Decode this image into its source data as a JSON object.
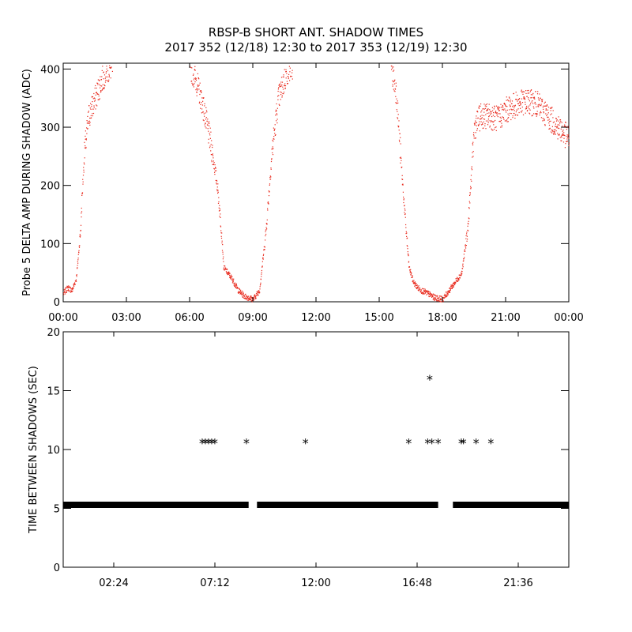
{
  "title": "RBSP-B SHORT ANT. SHADOW TIMES",
  "subtitle": "2017 352 (12/18) 12:30 to 2017 353 (12/19) 12:30",
  "colors": {
    "amp_points": "#e8291c",
    "shadow_points": "#000000",
    "axes": "#000000"
  },
  "chart_data": [
    {
      "type": "scatter",
      "ylabel": "Probe 5 DELTA AMP DURING SHADOW (ADC)",
      "xlabel": "",
      "xlim": [
        0,
        24
      ],
      "ylim": [
        0,
        400
      ],
      "xtick_labels": [
        "00:00",
        "03:00",
        "06:00",
        "09:00",
        "12:00",
        "15:00",
        "18:00",
        "21:00",
        "00:00"
      ],
      "ytick_labels": [
        "0",
        "100",
        "200",
        "300",
        "400"
      ],
      "x_unit": "hours",
      "series": [
        {
          "color": "#e8291c",
          "x": [
            0.0,
            0.2,
            0.4,
            0.6,
            0.8,
            0.9,
            1.0,
            1.2,
            1.5,
            1.8,
            2.0,
            2.5,
            3.0,
            5.5,
            6.0,
            6.3,
            6.6,
            7.0,
            7.3,
            7.5,
            7.6,
            7.8,
            8.0,
            8.3,
            8.6,
            9.0,
            9.3,
            9.6,
            9.9,
            10.2,
            10.6,
            11.0,
            15.5,
            15.8,
            16.0,
            16.2,
            16.4,
            16.6,
            16.8,
            17.0,
            17.3,
            17.6,
            18.0,
            18.3,
            18.6,
            18.9,
            19.2,
            19.5,
            19.8,
            20.2,
            20.6,
            21.0,
            21.5,
            22.0,
            22.5,
            23.0,
            23.5,
            24.0
          ],
          "y": [
            15,
            25,
            20,
            40,
            120,
            200,
            260,
            320,
            350,
            380,
            395,
            410,
            420,
            420,
            405,
            380,
            340,
            270,
            200,
            120,
            60,
            50,
            40,
            20,
            10,
            5,
            20,
            120,
            260,
            350,
            395,
            410,
            410,
            360,
            250,
            150,
            60,
            35,
            25,
            20,
            15,
            8,
            5,
            20,
            35,
            50,
            130,
            300,
            320,
            320,
            315,
            330,
            340,
            345,
            340,
            320,
            300,
            280
          ]
        }
      ]
    },
    {
      "type": "scatter",
      "ylabel": "TIME BETWEEN SHADOWS (SEC)",
      "xlabel": "",
      "xlim": [
        0,
        24
      ],
      "ylim": [
        0,
        20
      ],
      "xtick_labels": [
        "02:24",
        "07:12",
        "12:00",
        "16:48",
        "21:36"
      ],
      "ytick_labels": [
        "0",
        "5",
        "10",
        "15",
        "20"
      ],
      "x_unit": "hours",
      "series": [
        {
          "color": "#000000",
          "x": [
            6.6,
            6.75,
            6.9,
            7.05,
            7.2,
            8.7,
            11.5,
            16.4,
            17.3,
            17.4,
            17.5,
            17.8,
            18.9,
            19.0,
            19.6,
            20.3
          ],
          "y": [
            10.7,
            10.7,
            10.7,
            10.7,
            10.7,
            10.7,
            10.7,
            10.7,
            10.7,
            16.1,
            10.7,
            10.7,
            10.7,
            10.7,
            10.7,
            10.7
          ]
        }
      ],
      "baseline": {
        "y": 5.3,
        "x_ranges": [
          [
            0.0,
            8.8
          ],
          [
            9.2,
            17.8
          ],
          [
            18.5,
            24.0
          ]
        ]
      }
    }
  ]
}
